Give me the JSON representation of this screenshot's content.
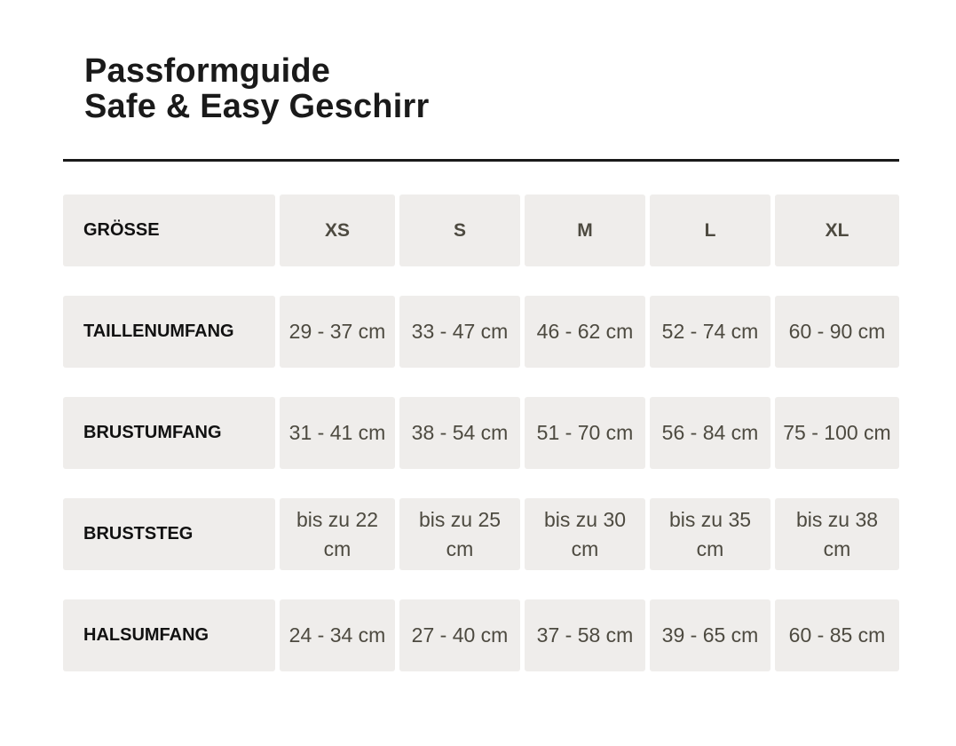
{
  "title": {
    "line1": "Passformguide",
    "line2": "Safe & Easy Geschirr"
  },
  "colors": {
    "cell_bg": "#efedeb",
    "value_text": "#4d4a40",
    "label_text": "#111111"
  },
  "table": {
    "header": {
      "label": "GRÖSSE",
      "sizes": [
        "XS",
        "S",
        "M",
        "L",
        "XL"
      ]
    },
    "rows": [
      {
        "label": "TAILLENUMFANG",
        "values": [
          "29 - 37 cm",
          "33 - 47 cm",
          "46 - 62 cm",
          "52 - 74 cm",
          "60 - 90 cm"
        ]
      },
      {
        "label": "BRUSTUMFANG",
        "values": [
          "31 - 41 cm",
          "38 - 54 cm",
          "51 - 70 cm",
          "56 - 84 cm",
          "75 - 100 cm"
        ]
      },
      {
        "label": "BRUSTSTEG",
        "values": [
          "bis zu 22 cm",
          "bis zu 25 cm",
          "bis zu 30 cm",
          "bis zu 35 cm",
          "bis zu 38 cm"
        ]
      },
      {
        "label": "HALSUMFANG",
        "values": [
          "24 - 34 cm",
          "27 - 40 cm",
          "37 - 58 cm",
          "39 - 65 cm",
          "60 - 85 cm"
        ]
      }
    ]
  }
}
